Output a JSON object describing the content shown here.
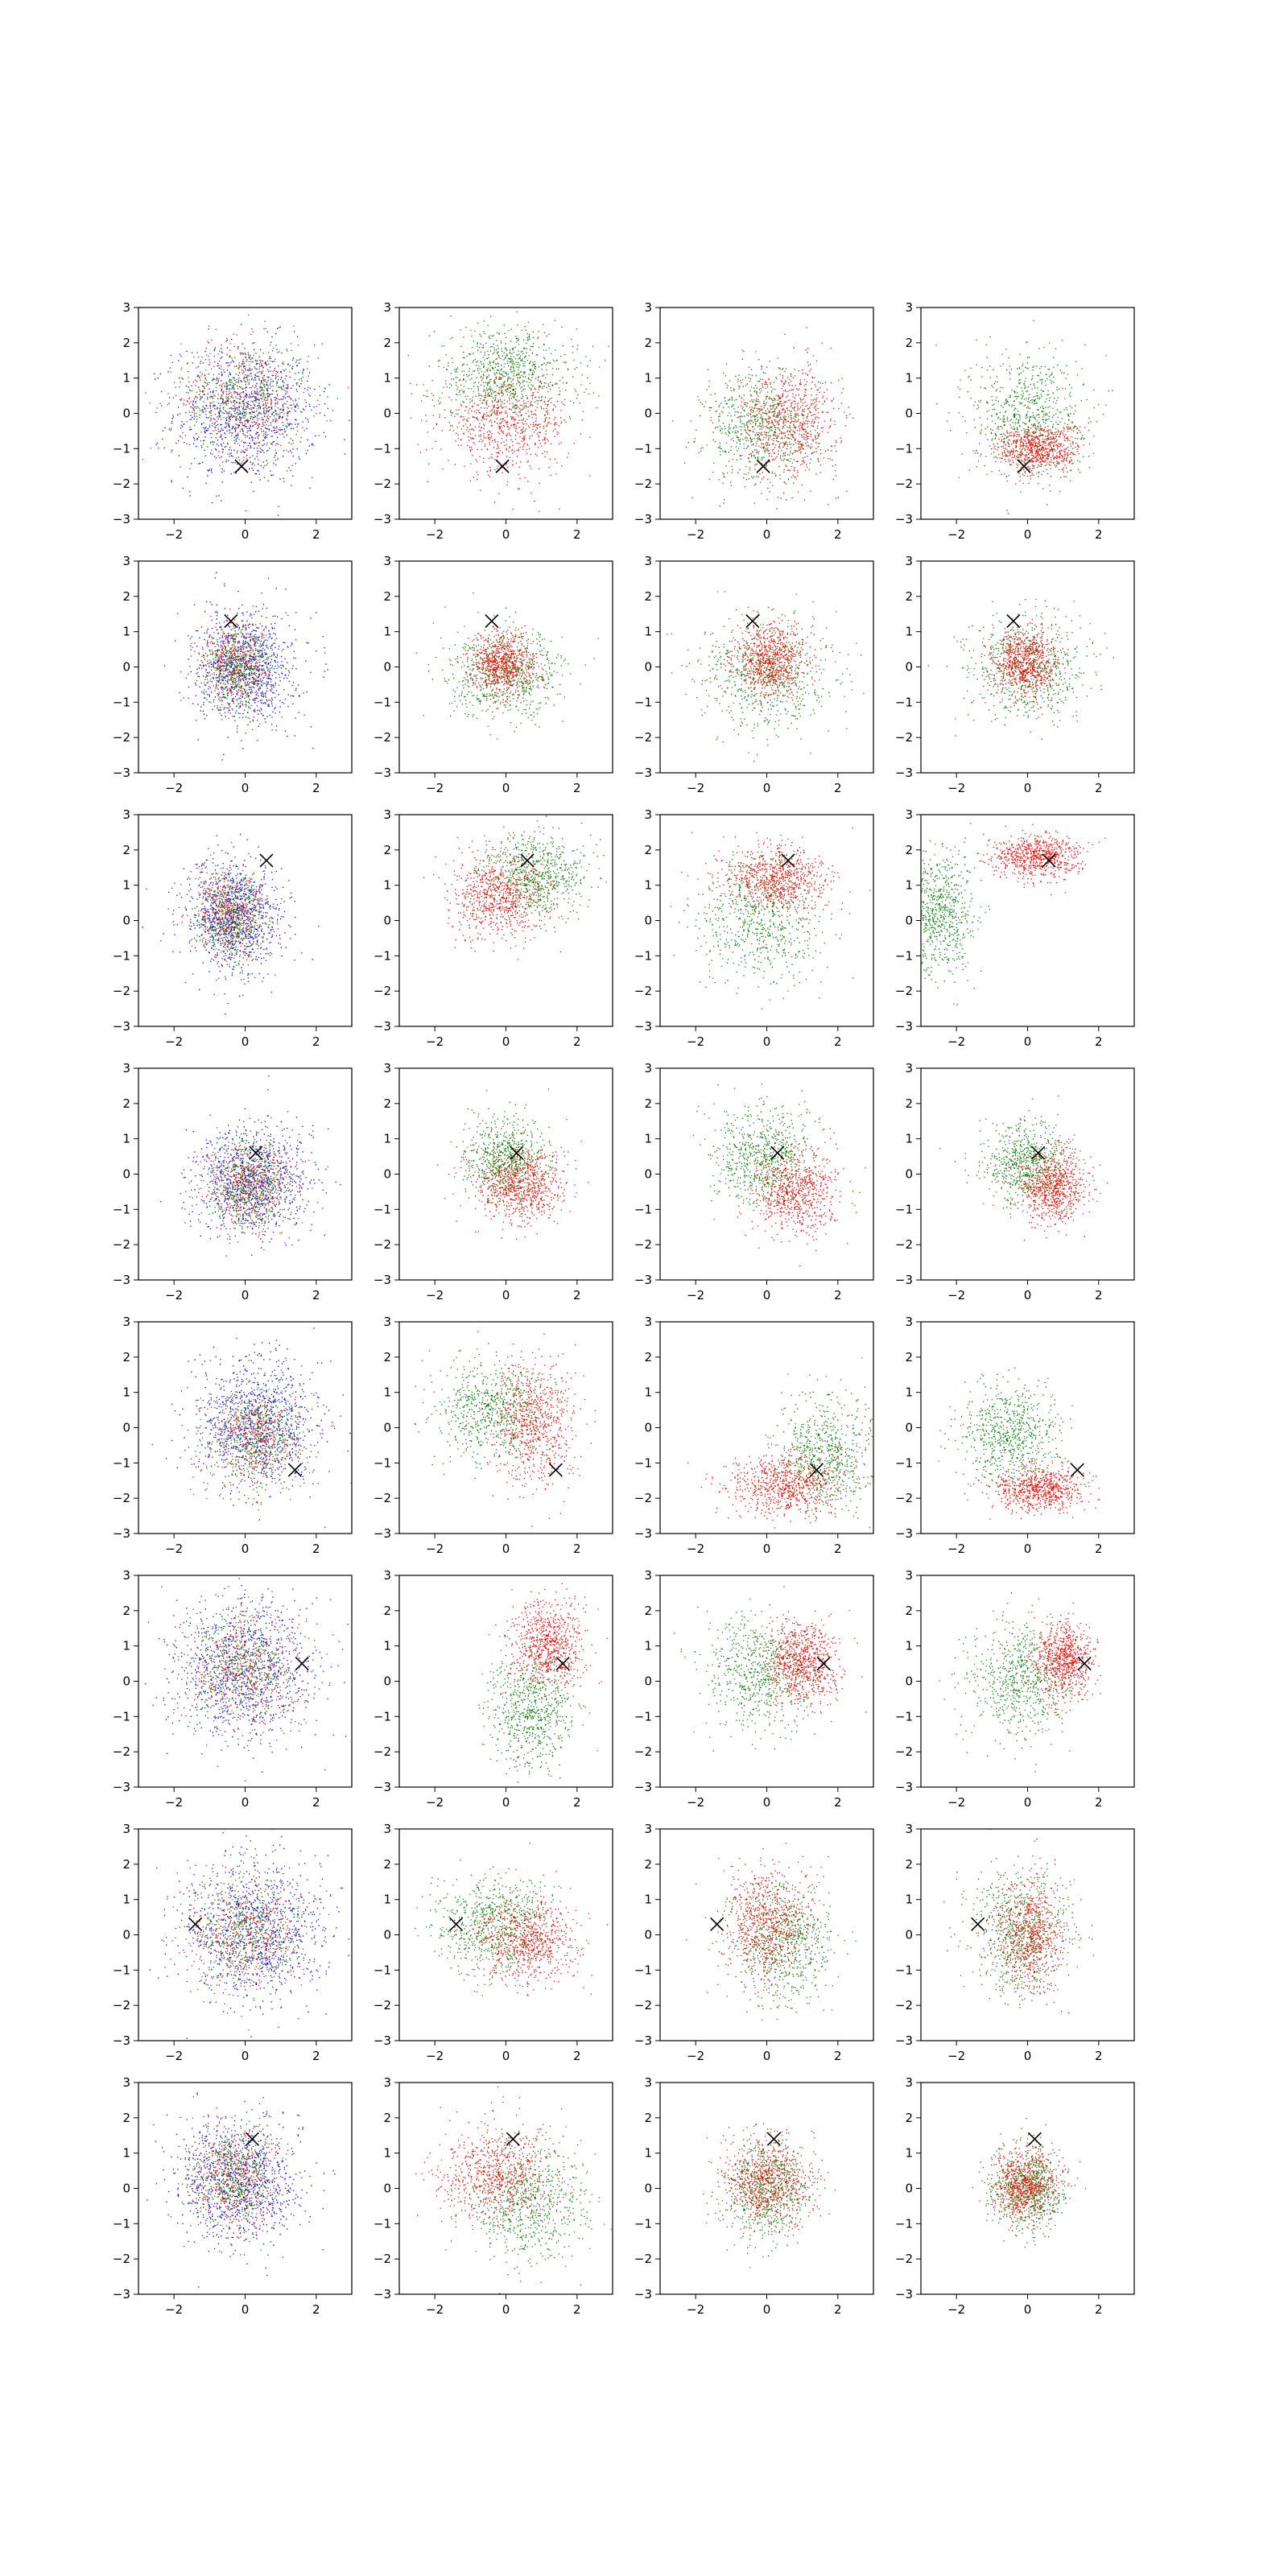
{
  "figure": {
    "rows": 8,
    "cols": 4,
    "xlim": [
      -3,
      3
    ],
    "ylim": [
      -3,
      3
    ],
    "xticks": [
      -2,
      0,
      2
    ],
    "yticks": [
      -3,
      -2,
      -1,
      0,
      1,
      2,
      3
    ],
    "tick_labels_x": [
      "−2",
      "0",
      "2"
    ],
    "tick_labels_y": [
      "−3",
      "−2",
      "−1",
      "0",
      "1",
      "2",
      "3"
    ],
    "colors": {
      "blue": "#0000ff",
      "red": "#ff0000",
      "green": "#008000",
      "marker": "#000000"
    }
  },
  "chart_data": {
    "type": "scatter",
    "title": "",
    "xlabel": "",
    "ylabel": "",
    "xlim": [
      -3,
      3
    ],
    "ylim": [
      -3,
      3
    ],
    "grid": false,
    "legend": "none",
    "columns": [
      {
        "column": 1,
        "series": [
          "blue",
          "red",
          "green"
        ],
        "description_colors": [
          "#0000ff",
          "#ff0000",
          "#008000"
        ]
      },
      {
        "column": 2,
        "series": [
          "red",
          "green"
        ],
        "description_colors": [
          "#ff0000",
          "#008000"
        ]
      },
      {
        "column": 3,
        "series": [
          "red",
          "green"
        ],
        "description_colors": [
          "#ff0000",
          "#008000"
        ]
      },
      {
        "column": 4,
        "series": [
          "red",
          "green"
        ],
        "description_colors": [
          "#ff0000",
          "#008000"
        ]
      }
    ],
    "marker_positions": [
      {
        "row": 1,
        "x": -0.1,
        "y": -1.5
      },
      {
        "row": 2,
        "x": -0.4,
        "y": 1.3
      },
      {
        "row": 3,
        "x": 0.6,
        "y": 1.7
      },
      {
        "row": 4,
        "x": 0.3,
        "y": 0.6
      },
      {
        "row": 5,
        "x": 1.4,
        "y": -1.2
      },
      {
        "row": 6,
        "x": 1.6,
        "y": 0.5
      },
      {
        "row": 7,
        "x": -1.4,
        "y": 0.3
      },
      {
        "row": 8,
        "x": 0.2,
        "y": 1.4
      }
    ],
    "clusters": [
      [
        [
          {
            "c": "blue",
            "mx": 0,
            "my": 0,
            "sx": 1.0,
            "sy": 1.0,
            "n": 900
          },
          {
            "c": "red",
            "mx": 0,
            "my": 0.4,
            "sx": 0.9,
            "sy": 0.8,
            "n": 500
          },
          {
            "c": "green",
            "mx": 0,
            "my": 0.5,
            "sx": 0.9,
            "sy": 0.8,
            "n": 500
          }
        ],
        [
          {
            "c": "green",
            "mx": 0,
            "my": 1.1,
            "sx": 1.0,
            "sy": 0.7,
            "n": 800
          },
          {
            "c": "red",
            "mx": 0,
            "my": -0.3,
            "sx": 0.9,
            "sy": 0.7,
            "n": 700
          }
        ],
        [
          {
            "c": "green",
            "mx": -0.2,
            "my": -0.4,
            "sx": 0.8,
            "sy": 0.8,
            "n": 700
          },
          {
            "c": "red",
            "mx": 0.6,
            "my": -0.2,
            "sx": 0.7,
            "sy": 0.8,
            "n": 700
          }
        ],
        [
          {
            "c": "green",
            "mx": 0,
            "my": 0,
            "sx": 0.8,
            "sy": 0.9,
            "n": 700
          },
          {
            "c": "red",
            "mx": 0.3,
            "my": -1.0,
            "sx": 0.6,
            "sy": 0.35,
            "n": 700
          }
        ]
      ],
      [
        [
          {
            "c": "blue",
            "mx": 0,
            "my": 0,
            "sx": 0.7,
            "sy": 0.8,
            "n": 900
          },
          {
            "c": "red",
            "mx": -0.2,
            "my": 0.1,
            "sx": 0.5,
            "sy": 0.6,
            "n": 500
          },
          {
            "c": "green",
            "mx": -0.2,
            "my": 0,
            "sx": 0.5,
            "sy": 0.6,
            "n": 500
          }
        ],
        [
          {
            "c": "green",
            "mx": 0,
            "my": -0.2,
            "sx": 0.8,
            "sy": 0.6,
            "n": 700
          },
          {
            "c": "red",
            "mx": -0.1,
            "my": 0.1,
            "sx": 0.45,
            "sy": 0.45,
            "n": 700
          }
        ],
        [
          {
            "c": "green",
            "mx": 0,
            "my": -0.2,
            "sx": 0.9,
            "sy": 0.8,
            "n": 700
          },
          {
            "c": "red",
            "mx": 0.1,
            "my": 0.2,
            "sx": 0.5,
            "sy": 0.5,
            "n": 700
          }
        ],
        [
          {
            "c": "green",
            "mx": 0,
            "my": 0,
            "sx": 0.8,
            "sy": 0.7,
            "n": 700
          },
          {
            "c": "red",
            "mx": -0.1,
            "my": 0.1,
            "sx": 0.45,
            "sy": 0.5,
            "n": 700
          }
        ]
      ],
      [
        [
          {
            "c": "blue",
            "mx": -0.3,
            "my": 0.1,
            "sx": 0.7,
            "sy": 0.8,
            "n": 900
          },
          {
            "c": "red",
            "mx": -0.4,
            "my": 0.2,
            "sx": 0.5,
            "sy": 0.6,
            "n": 500
          },
          {
            "c": "green",
            "mx": -0.4,
            "my": 0.1,
            "sx": 0.5,
            "sy": 0.6,
            "n": 500
          }
        ],
        [
          {
            "c": "green",
            "mx": 0.8,
            "my": 1.3,
            "sx": 0.7,
            "sy": 0.6,
            "n": 700
          },
          {
            "c": "red",
            "mx": -0.2,
            "my": 0.7,
            "sx": 0.7,
            "sy": 0.6,
            "n": 700
          }
        ],
        [
          {
            "c": "green",
            "mx": -0.2,
            "my": 0.1,
            "sx": 0.9,
            "sy": 0.9,
            "n": 700
          },
          {
            "c": "red",
            "mx": 0.2,
            "my": 1.2,
            "sx": 0.7,
            "sy": 0.45,
            "n": 700
          }
        ],
        [
          {
            "c": "green",
            "mx": -2.5,
            "my": 0.2,
            "sx": 0.5,
            "sy": 0.9,
            "n": 700
          },
          {
            "c": "red",
            "mx": 0.2,
            "my": 1.8,
            "sx": 0.6,
            "sy": 0.3,
            "n": 700
          }
        ]
      ],
      [
        [
          {
            "c": "blue",
            "mx": 0.2,
            "my": -0.2,
            "sx": 0.8,
            "sy": 0.8,
            "n": 900
          },
          {
            "c": "red",
            "mx": 0.1,
            "my": -0.3,
            "sx": 0.6,
            "sy": 0.6,
            "n": 500
          },
          {
            "c": "green",
            "mx": 0.1,
            "my": -0.3,
            "sx": 0.6,
            "sy": 0.6,
            "n": 500
          }
        ],
        [
          {
            "c": "green",
            "mx": 0,
            "my": 0.4,
            "sx": 0.6,
            "sy": 0.6,
            "n": 700
          },
          {
            "c": "red",
            "mx": 0.4,
            "my": -0.3,
            "sx": 0.6,
            "sy": 0.5,
            "n": 700
          }
        ],
        [
          {
            "c": "green",
            "mx": -0.1,
            "my": 0.5,
            "sx": 0.7,
            "sy": 0.7,
            "n": 700
          },
          {
            "c": "red",
            "mx": 0.8,
            "my": -0.5,
            "sx": 0.6,
            "sy": 0.6,
            "n": 700
          }
        ],
        [
          {
            "c": "green",
            "mx": 0,
            "my": 0.3,
            "sx": 0.6,
            "sy": 0.6,
            "n": 700
          },
          {
            "c": "red",
            "mx": 0.7,
            "my": -0.4,
            "sx": 0.45,
            "sy": 0.5,
            "n": 700
          }
        ]
      ],
      [
        [
          {
            "c": "blue",
            "mx": 0.4,
            "my": 0.1,
            "sx": 0.9,
            "sy": 0.9,
            "n": 900
          },
          {
            "c": "red",
            "mx": 0.3,
            "my": -0.3,
            "sx": 0.7,
            "sy": 0.7,
            "n": 500
          },
          {
            "c": "green",
            "mx": 0.3,
            "my": -0.2,
            "sx": 0.7,
            "sy": 0.7,
            "n": 500
          }
        ],
        [
          {
            "c": "green",
            "mx": -0.4,
            "my": 0.5,
            "sx": 0.8,
            "sy": 0.7,
            "n": 700
          },
          {
            "c": "red",
            "mx": 0.8,
            "my": 0.2,
            "sx": 0.6,
            "sy": 0.9,
            "n": 700
          }
        ],
        [
          {
            "c": "green",
            "mx": 1.6,
            "my": -0.8,
            "sx": 0.7,
            "sy": 0.8,
            "n": 700
          },
          {
            "c": "red",
            "mx": 0.5,
            "my": -1.6,
            "sx": 0.8,
            "sy": 0.45,
            "n": 700
          }
        ],
        [
          {
            "c": "green",
            "mx": -0.5,
            "my": -0.2,
            "sx": 0.7,
            "sy": 0.7,
            "n": 700
          },
          {
            "c": "red",
            "mx": 0.3,
            "my": -1.7,
            "sx": 0.6,
            "sy": 0.3,
            "n": 700
          }
        ]
      ],
      [
        [
          {
            "c": "blue",
            "mx": 0,
            "my": 0.4,
            "sx": 1.0,
            "sy": 1.0,
            "n": 900
          },
          {
            "c": "red",
            "mx": 0,
            "my": 0.3,
            "sx": 0.8,
            "sy": 0.8,
            "n": 500
          },
          {
            "c": "green",
            "mx": -0.2,
            "my": 0.4,
            "sx": 0.8,
            "sy": 0.8,
            "n": 500
          }
        ],
        [
          {
            "c": "green",
            "mx": 0.7,
            "my": -0.8,
            "sx": 0.6,
            "sy": 0.8,
            "n": 700
          },
          {
            "c": "red",
            "mx": 1.2,
            "my": 1.0,
            "sx": 0.5,
            "sy": 0.6,
            "n": 700
          }
        ],
        [
          {
            "c": "green",
            "mx": -0.2,
            "my": 0.3,
            "sx": 0.8,
            "sy": 0.8,
            "n": 700
          },
          {
            "c": "red",
            "mx": 1.0,
            "my": 0.5,
            "sx": 0.5,
            "sy": 0.6,
            "n": 700
          }
        ],
        [
          {
            "c": "green",
            "mx": -0.2,
            "my": 0,
            "sx": 0.8,
            "sy": 0.8,
            "n": 700
          },
          {
            "c": "red",
            "mx": 1.0,
            "my": 0.6,
            "sx": 0.4,
            "sy": 0.55,
            "n": 700
          }
        ]
      ],
      [
        [
          {
            "c": "blue",
            "mx": 0.3,
            "my": 0.2,
            "sx": 1.0,
            "sy": 1.0,
            "n": 900
          },
          {
            "c": "red",
            "mx": 0,
            "my": 0,
            "sx": 0.8,
            "sy": 0.8,
            "n": 500
          },
          {
            "c": "green",
            "mx": 0,
            "my": 0,
            "sx": 0.8,
            "sy": 0.8,
            "n": 500
          }
        ],
        [
          {
            "c": "green",
            "mx": -0.3,
            "my": 0.3,
            "sx": 0.8,
            "sy": 0.7,
            "n": 700
          },
          {
            "c": "red",
            "mx": 0.6,
            "my": -0.2,
            "sx": 0.7,
            "sy": 0.6,
            "n": 700
          }
        ],
        [
          {
            "c": "green",
            "mx": 0.4,
            "my": -0.2,
            "sx": 0.7,
            "sy": 0.8,
            "n": 700
          },
          {
            "c": "red",
            "mx": 0,
            "my": 0.3,
            "sx": 0.6,
            "sy": 0.8,
            "n": 700
          }
        ],
        [
          {
            "c": "green",
            "mx": -0.2,
            "my": 0.1,
            "sx": 0.7,
            "sy": 0.8,
            "n": 700
          },
          {
            "c": "red",
            "mx": 0,
            "my": 0,
            "sx": 0.5,
            "sy": 0.8,
            "n": 700
          }
        ]
      ],
      [
        [
          {
            "c": "blue",
            "mx": -0.2,
            "my": 0.2,
            "sx": 0.9,
            "sy": 0.9,
            "n": 900
          },
          {
            "c": "red",
            "mx": -0.3,
            "my": 0.3,
            "sx": 0.6,
            "sy": 0.7,
            "n": 500
          },
          {
            "c": "green",
            "mx": -0.3,
            "my": 0.3,
            "sx": 0.6,
            "sy": 0.7,
            "n": 500
          }
        ],
        [
          {
            "c": "green",
            "mx": 0.6,
            "my": -0.4,
            "sx": 0.8,
            "sy": 0.8,
            "n": 700
          },
          {
            "c": "red",
            "mx": -0.3,
            "my": 0.4,
            "sx": 0.8,
            "sy": 0.7,
            "n": 700
          }
        ],
        [
          {
            "c": "green",
            "mx": 0,
            "my": 0,
            "sx": 0.6,
            "sy": 0.7,
            "n": 700
          },
          {
            "c": "red",
            "mx": 0,
            "my": 0.2,
            "sx": 0.6,
            "sy": 0.6,
            "n": 700
          }
        ],
        [
          {
            "c": "green",
            "mx": 0,
            "my": 0,
            "sx": 0.5,
            "sy": 0.6,
            "n": 700
          },
          {
            "c": "red",
            "mx": -0.1,
            "my": 0.1,
            "sx": 0.45,
            "sy": 0.5,
            "n": 700
          }
        ]
      ]
    ]
  }
}
